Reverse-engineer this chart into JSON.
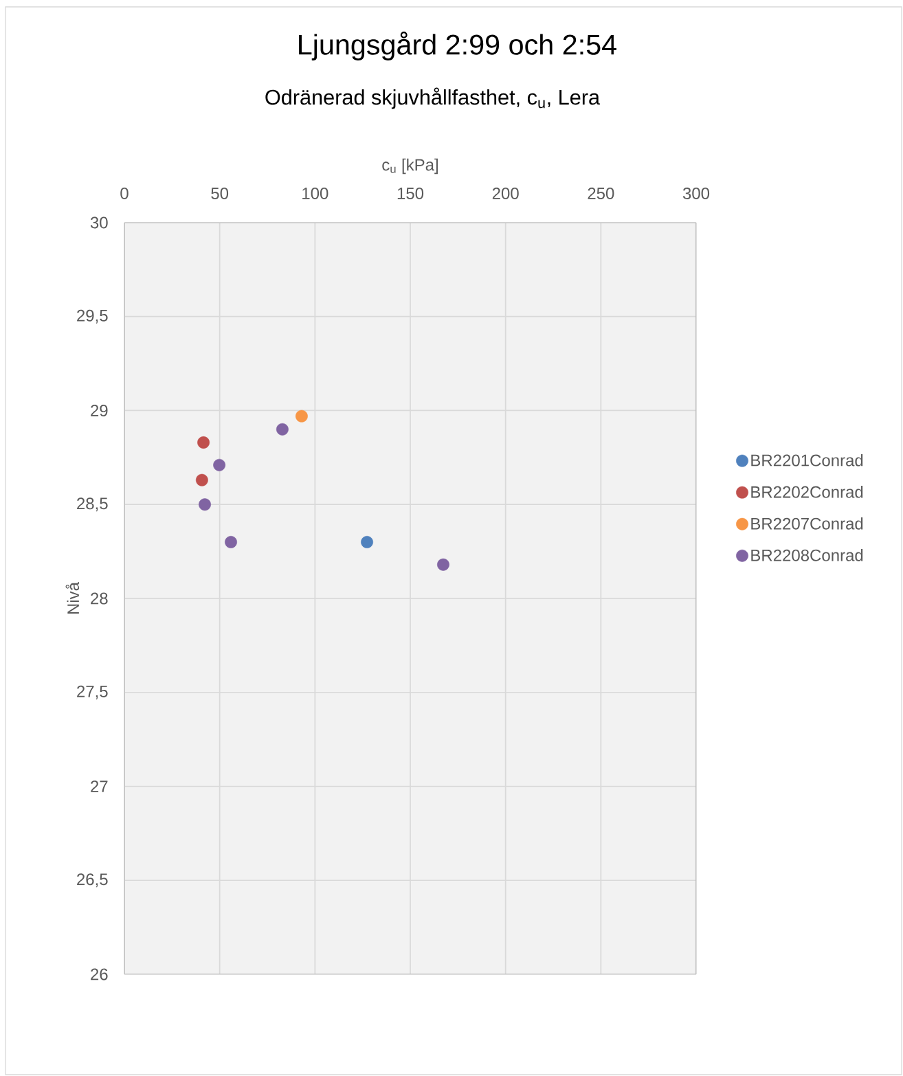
{
  "chart_data": {
    "type": "scatter",
    "title": "Ljungsgård 2:99 och 2:54",
    "subtitle": "Odränerad skjuvhållfasthet, c$_{u}$, Lera",
    "xlabel": "c$_{u}$ [kPa]",
    "ylabel": "Nivå",
    "xlim": [
      0,
      300
    ],
    "xticks": [
      0,
      50,
      100,
      150,
      200,
      250,
      300
    ],
    "ylim": [
      26,
      30
    ],
    "yticks": [
      {
        "value": 26,
        "label": "26"
      },
      {
        "value": 26.5,
        "label": "26,5"
      },
      {
        "value": 27,
        "label": "27"
      },
      {
        "value": 27.5,
        "label": "27,5"
      },
      {
        "value": 28,
        "label": "28"
      },
      {
        "value": 28.5,
        "label": "28,5"
      },
      {
        "value": 29,
        "label": "29"
      },
      {
        "value": 29.5,
        "label": "29,5"
      },
      {
        "value": 30,
        "label": "30"
      }
    ],
    "grid": true,
    "legend": "right",
    "marker": "circle",
    "series": [
      {
        "name": "BR2201Conrad",
        "color": "#4f81bd",
        "x": [
          127.3
        ],
        "values": [
          28.3
        ]
      },
      {
        "name": "BR2202Conrad",
        "color": "#c0504d",
        "x": [
          41.5,
          40.7
        ],
        "values": [
          28.83,
          28.63
        ]
      },
      {
        "name": "BR2207Conrad",
        "color": "#f79646",
        "x": [
          93.0
        ],
        "values": [
          28.97
        ]
      },
      {
        "name": "BR2208Conrad",
        "color": "#8064a2",
        "x": [
          82.9,
          49.8,
          42.2,
          55.9,
          167.3
        ],
        "values": [
          28.9,
          28.71,
          28.5,
          28.3,
          28.18
        ]
      }
    ]
  }
}
